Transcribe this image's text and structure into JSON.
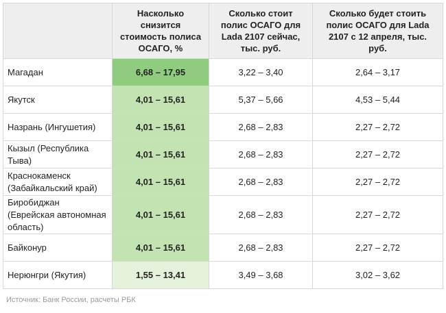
{
  "columns": [
    "",
    "Насколько снизится стоимость полиса ОСАГО, %",
    "Сколько стоит полис ОСАГО для Lada 2107 сейчас, тыс. руб.",
    "Сколько будет стоить полис ОСАГО для Lada 2107 с 12 апреля, тыс. руб."
  ],
  "rows": [
    {
      "city": "Магадан",
      "decrease": "6,68 – 17,95",
      "now": "3,22 – 3,40",
      "after": "2,64 – 3,17",
      "shade": "#8fcc7f"
    },
    {
      "city": "Якутск",
      "decrease": "4,01 – 15,61",
      "now": "5,37 – 5,66",
      "after": "4,53 – 5,44",
      "shade": "#c3e3b3"
    },
    {
      "city": "Назрань (Ингушетия)",
      "decrease": "4,01 – 15,61",
      "now": "2,68 – 2,83",
      "after": "2,27 – 2,72",
      "shade": "#c3e3b3"
    },
    {
      "city": "Кызыл (Республика Тыва)",
      "decrease": "4,01 – 15,61",
      "now": "2,68 – 2,83",
      "after": "2,27 – 2,72",
      "shade": "#c3e3b3"
    },
    {
      "city": "Краснокаменск (Забайкальский край)",
      "decrease": "4,01 – 15,61",
      "now": "2,68 – 2,83",
      "after": "2,27 – 2,72",
      "shade": "#c3e3b3"
    },
    {
      "city": "Биробиджан (Еврейская автономная область)",
      "decrease": "4,01 – 15,61",
      "now": "2,68 – 2,83",
      "after": "2,27 – 2,72",
      "shade": "#c3e3b3"
    },
    {
      "city": "Байконур",
      "decrease": "4,01 – 15,61",
      "now": "2,68 – 2,83",
      "after": "2,27 – 2,72",
      "shade": "#c3e3b3"
    },
    {
      "city": "Нерюнгри (Якутия)",
      "decrease": "1,55 – 13,41",
      "now": "3,49 – 3,68",
      "after": "3,02 – 3,62",
      "shade": "#e4f2dc"
    }
  ],
  "source": "Источник: Банк России, расчеты РБК"
}
